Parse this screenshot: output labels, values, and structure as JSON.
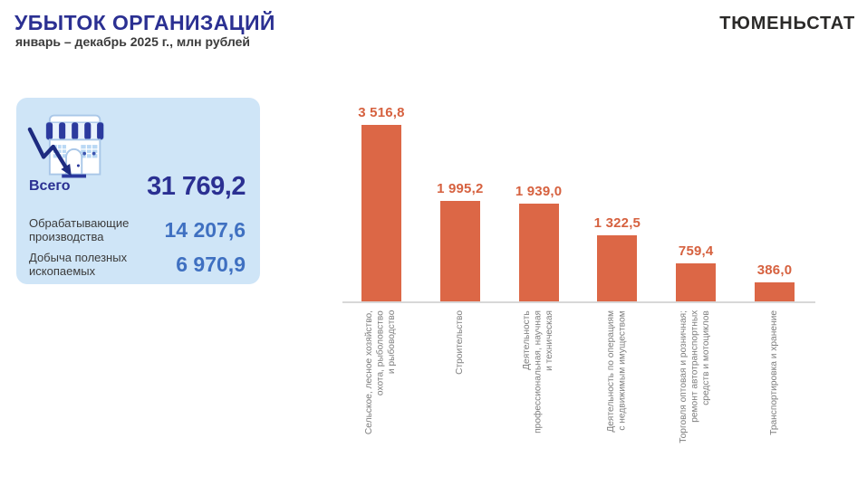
{
  "header": {
    "title": "УБЫТОК ОРГАНИЗАЦИЙ",
    "subtitle": "январь – декабрь 2025 г., млн рублей",
    "logo_text": "ТЮМЕНЬСТАТ"
  },
  "summary_card": {
    "icon": "declining-store-icon",
    "rows": [
      {
        "label": "Всего",
        "value": "31 769,2"
      },
      {
        "label": "Обрабатывающие производства",
        "value": "14 207,6"
      },
      {
        "label": "Добыча полезных ископаемых",
        "value": "6 970,9"
      }
    ]
  },
  "chart_data": {
    "type": "bar",
    "orientation": "vertical",
    "title": "УБЫТОК ОРГАНИЗАЦИЙ",
    "subtitle": "январь – декабрь 2025 г., млн рублей",
    "unit": "млн рублей",
    "categories": [
      "Сельское, лесное хозяйство, охота, рыболовство и рыбоводство",
      "Строительство",
      "Деятельность профессиональная, научная и техническая",
      "Деятельность по операциям с недвижимым имуществом",
      "Торговля оптовая и розничная; ремонт автотранспортных средств и мотоциклов",
      "Транспортировка и хранение"
    ],
    "category_lines": [
      [
        "Сельское, лесное хозяйство,",
        "охота, рыболовство",
        "и рыбоводство"
      ],
      [
        "Строительство"
      ],
      [
        "Деятельность",
        "профессиональная, научная",
        "и техническая"
      ],
      [
        "Деятельность по операциям",
        "с недвижимым имуществом"
      ],
      [
        "Торговля оптовая и розничная;",
        "ремонт автотранспортных",
        "средств и мотоциклов"
      ],
      [
        "Транспортировка и хранение"
      ]
    ],
    "values": [
      3516.8,
      1995.2,
      1939.0,
      1322.5,
      759.4,
      386.0
    ],
    "value_labels": [
      "3 516,8",
      "1 995,2",
      "1 939,0",
      "1 322,5",
      "759,4",
      "386,0"
    ],
    "ylim": [
      0,
      3700
    ],
    "grid": false,
    "legend": false,
    "bar_color": "#dc6746"
  },
  "colors": {
    "title_navy": "#2b3092",
    "value_blue": "#3f70c1",
    "bar_orange": "#dc6746",
    "bar_label_orange": "#d6613f",
    "card_bg": "#cfe5f7",
    "category_gray": "#7f7f7f",
    "axis_gray": "#d8d8d8",
    "text_dark": "#3b3b3b",
    "logo_black": "#2b2a29"
  }
}
